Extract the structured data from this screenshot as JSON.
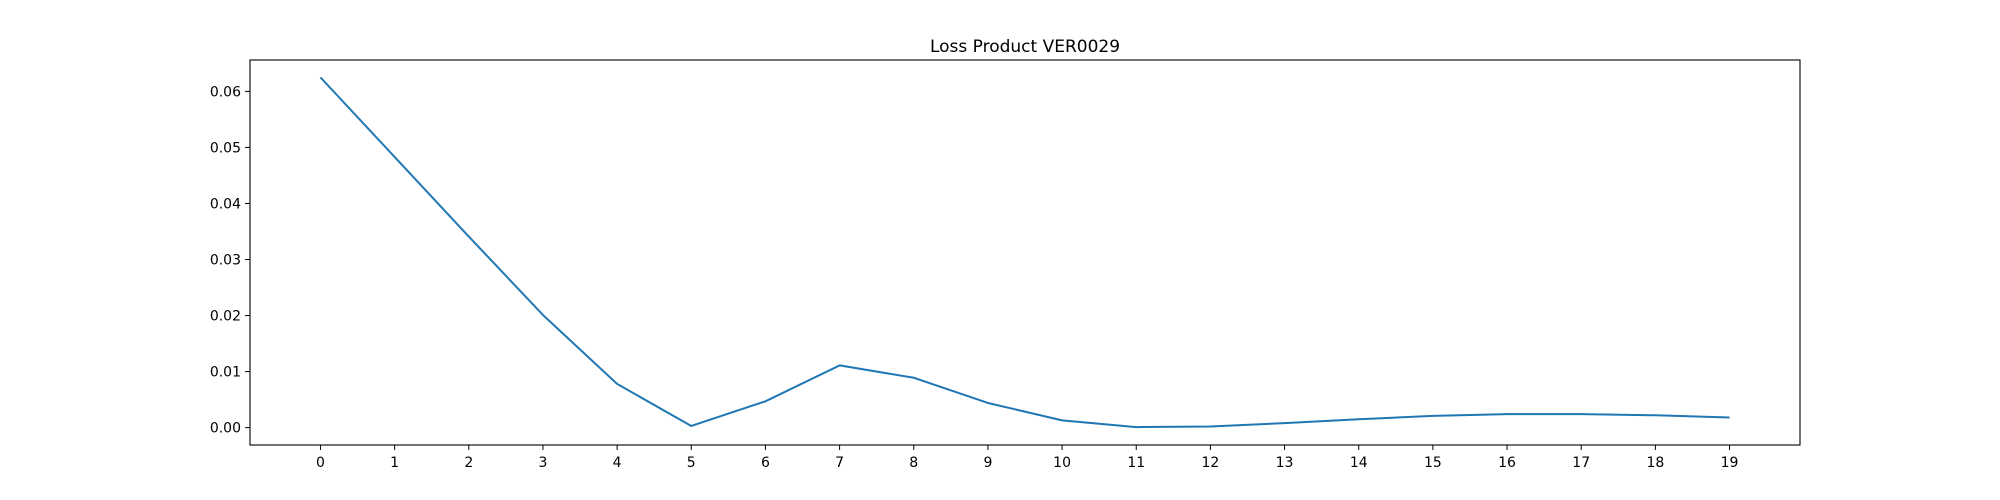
{
  "chart_data": {
    "type": "line",
    "title": "Loss Product VER0029",
    "xlabel": "",
    "ylabel": "",
    "x": [
      0,
      1,
      2,
      3,
      4,
      5,
      6,
      7,
      8,
      9,
      10,
      11,
      12,
      13,
      14,
      15,
      16,
      17,
      18,
      19
    ],
    "x_tick_labels": [
      "0",
      "1",
      "2",
      "3",
      "4",
      "5",
      "6",
      "7",
      "8",
      "9",
      "10",
      "11",
      "12",
      "13",
      "14",
      "15",
      "16",
      "17",
      "18",
      "19"
    ],
    "y_ticks": [
      0.0,
      0.01,
      0.02,
      0.03,
      0.04,
      0.05,
      0.06
    ],
    "y_tick_labels": [
      "0.00",
      "0.01",
      "0.02",
      "0.03",
      "0.04",
      "0.05",
      "0.06"
    ],
    "xlim": [
      -0.95,
      19.95
    ],
    "ylim": [
      -0.0031,
      0.0656
    ],
    "series": [
      {
        "color": "#1f77b4",
        "values": [
          0.0625,
          0.0483,
          0.0341,
          0.0201,
          0.0078,
          0.0003,
          0.0047,
          0.0111,
          0.0089,
          0.0044,
          0.0013,
          0.0001,
          0.0002,
          0.0008,
          0.0015,
          0.0021,
          0.0024,
          0.0024,
          0.0022,
          0.0018
        ]
      }
    ],
    "grid": false,
    "legend": "none"
  }
}
